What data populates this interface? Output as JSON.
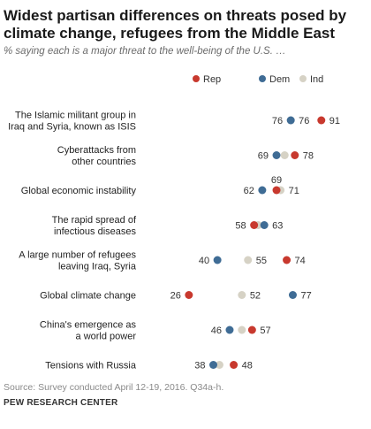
{
  "header": {
    "title": "Widest partisan differences on threats posed by climate change, refugees from the Middle East",
    "subtitle": "% saying each is a major threat to the well-being of the U.S. …"
  },
  "footer": {
    "source": "Source: Survey conducted April 12-19, 2016. Q34a-h.",
    "brand": "PEW RESEARCH CENTER"
  },
  "chart_data": {
    "type": "scatter",
    "subtype": "dot-plot",
    "title": "Widest partisan differences on threats posed by climate change, refugees from the Middle East",
    "subtitle": "% saying each is a major threat to the well-being of the U.S. …",
    "legend_position": "top-right",
    "grid": false,
    "xlim": [
      20,
      95
    ],
    "categories": [
      [
        "The Islamic militant group in",
        "Iraq and Syria, known as ISIS"
      ],
      [
        "Cyberattacks from",
        "other countries"
      ],
      [
        "Global economic instability"
      ],
      [
        "The rapid spread of",
        "infectious diseases"
      ],
      [
        "A large number of refugees",
        "leaving Iraq, Syria"
      ],
      [
        "Global climate change"
      ],
      [
        "China's emergence as",
        "a world power"
      ],
      [
        "Tensions with Russia"
      ]
    ],
    "series": [
      {
        "name": "Rep",
        "color": "#c8392e",
        "values": [
          91,
          78,
          69,
          58,
          74,
          26,
          57,
          48
        ]
      },
      {
        "name": "Dem",
        "color": "#3f6c95",
        "values": [
          76,
          69,
          62,
          63,
          40,
          77,
          46,
          38
        ]
      },
      {
        "name": "Ind",
        "color": "#d6d2c5",
        "values": [
          76,
          73,
          71,
          60,
          55,
          52,
          52,
          41
        ]
      }
    ],
    "labels": [
      [
        {
          "s": 1,
          "text": "76",
          "side": "left"
        },
        {
          "s": 2,
          "text": "76",
          "side": "right"
        },
        {
          "s": 0,
          "text": "91",
          "side": "right"
        }
      ],
      [
        {
          "s": 1,
          "text": "69",
          "side": "left"
        },
        {
          "s": 0,
          "text": "78",
          "side": "right"
        }
      ],
      [
        {
          "s": 1,
          "text": "62",
          "side": "left"
        },
        {
          "s": 0,
          "text": "69",
          "side": "above"
        },
        {
          "s": 2,
          "text": "71",
          "side": "right"
        }
      ],
      [
        {
          "s": 0,
          "text": "58",
          "side": "left"
        },
        {
          "s": 1,
          "text": "63",
          "side": "right"
        }
      ],
      [
        {
          "s": 1,
          "text": "40",
          "side": "left"
        },
        {
          "s": 2,
          "text": "55",
          "side": "right"
        },
        {
          "s": 0,
          "text": "74",
          "side": "right"
        }
      ],
      [
        {
          "s": 0,
          "text": "26",
          "side": "left"
        },
        {
          "s": 2,
          "text": "52",
          "side": "right"
        },
        {
          "s": 1,
          "text": "77",
          "side": "right"
        }
      ],
      [
        {
          "s": 1,
          "text": "46",
          "side": "left"
        },
        {
          "s": 0,
          "text": "57",
          "side": "right"
        }
      ],
      [
        {
          "s": 1,
          "text": "38",
          "side": "left"
        },
        {
          "s": 0,
          "text": "48",
          "side": "right"
        }
      ]
    ]
  }
}
